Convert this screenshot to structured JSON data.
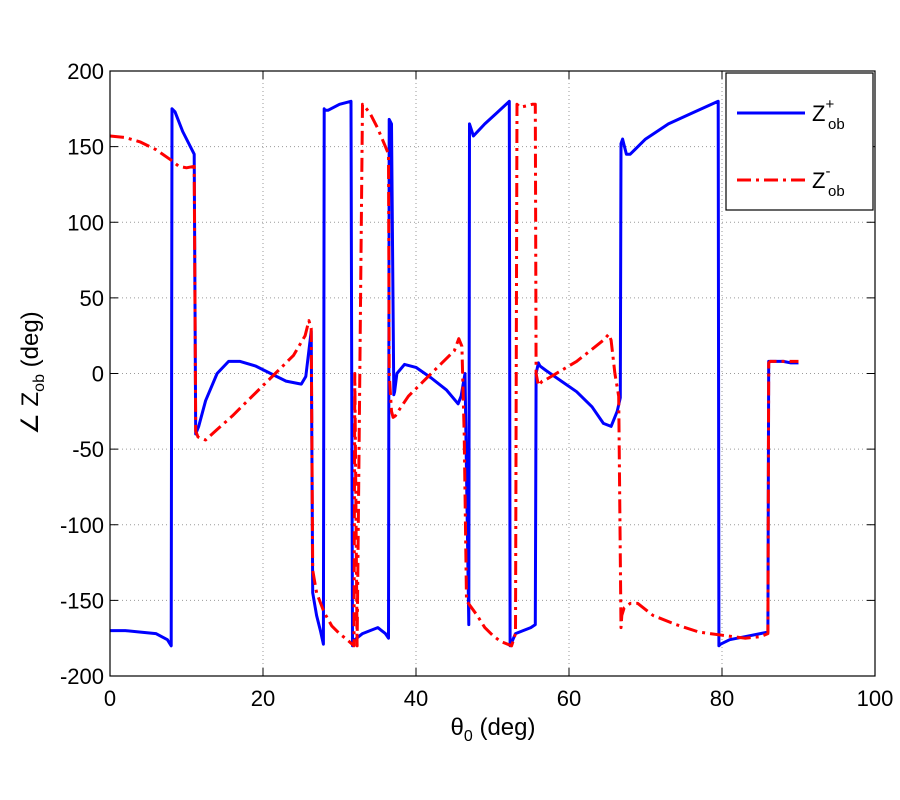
{
  "chart_data": {
    "type": "line",
    "title": "",
    "xlabel": {
      "symbol": "θ",
      "sub": "0",
      "unit": " (deg)"
    },
    "ylabel": {
      "prefix": "∠ Z",
      "sub": "ob",
      "unit": " (deg)"
    },
    "xlim": [
      0,
      100
    ],
    "ylim": [
      -200,
      200
    ],
    "xticks": [
      0,
      20,
      40,
      60,
      80,
      100
    ],
    "yticks": [
      -200,
      -150,
      -100,
      -50,
      0,
      50,
      100,
      150,
      200
    ],
    "grid": true,
    "legend_position": "top-right",
    "series": [
      {
        "name": "Z_ob^+",
        "legend": {
          "base": "Z",
          "sup": "+",
          "sub": "ob"
        },
        "color": "#0000ff",
        "style": "solid",
        "x": [
          0,
          2,
          4,
          6,
          7.5,
          8,
          8.1,
          8.5,
          9.5,
          11,
          11.2,
          11.6,
          12.5,
          14,
          15.5,
          17,
          19,
          21,
          23,
          25,
          25.6,
          26.3,
          26.5,
          27,
          27.5,
          27.9,
          28.0,
          28.1,
          28.5,
          30,
          31.5,
          31.6,
          31.7,
          32.0,
          33,
          34,
          35,
          36,
          36.4,
          36.5,
          36.8,
          37.1,
          37.2,
          37.5,
          38.5,
          40,
          42,
          44,
          45.5,
          45.9,
          46.4,
          46.9,
          47.0,
          47.5,
          49,
          50.5,
          52.2,
          52.3,
          52.5,
          53,
          54,
          55,
          55.6,
          55.7,
          56.0,
          56.2,
          57,
          59,
          61,
          63,
          64.5,
          65.5,
          66.3,
          66.7,
          66.8,
          67.0,
          67.5,
          68,
          70,
          73,
          76,
          79.5,
          79.6,
          79.8,
          81,
          83,
          85,
          86.0,
          86.1,
          86.3,
          87,
          88,
          89,
          90
        ],
        "y": [
          -170,
          -170,
          -171,
          -172,
          -176,
          -180,
          175,
          173,
          160,
          145,
          -40,
          -35,
          -18,
          0,
          8,
          8,
          5,
          0,
          -5,
          -7,
          -2,
          28,
          -145,
          -160,
          -170,
          -179,
          175,
          174,
          174,
          178,
          180,
          0,
          -180,
          -176,
          -172,
          -170,
          -168,
          -172,
          -175,
          168,
          165,
          -14,
          -12,
          0,
          6,
          4,
          -3,
          -11,
          -20,
          -15,
          0,
          -166,
          165,
          157,
          165,
          172,
          180,
          -180,
          -178,
          -172,
          -170,
          -168,
          -166,
          0,
          7,
          5,
          2,
          -5,
          -12,
          -22,
          -33,
          -35,
          -25,
          -16,
          152,
          155,
          145,
          145,
          155,
          165,
          172,
          180,
          -180,
          -179,
          -176,
          -174,
          -172,
          -171,
          8,
          8,
          8,
          8,
          7,
          7
        ]
      },
      {
        "name": "Z_ob^-",
        "legend": {
          "base": "Z",
          "sup": "-",
          "sub": "ob"
        },
        "color": "#ff0000",
        "style": "dashdot",
        "x": [
          0,
          2,
          4,
          6,
          8,
          9,
          10,
          11,
          11.2,
          11.5,
          12.5,
          14,
          16,
          18,
          20,
          22,
          24,
          25.5,
          26,
          26.3,
          26.5,
          27,
          28,
          29,
          30,
          31,
          31.9,
          32.0,
          32.3,
          33.0,
          33.2,
          34,
          35,
          36,
          36.4,
          36.5,
          36.8,
          37,
          37.3,
          37.8,
          39,
          41,
          43,
          45,
          45.6,
          46,
          46.3,
          46.6,
          47,
          48,
          49,
          50,
          51,
          52.5,
          53,
          53.2,
          53.6,
          54.5,
          55.2,
          55.6,
          55.7,
          56,
          56.5,
          57,
          59,
          61,
          63,
          64.5,
          65.2,
          65.5,
          66,
          66.5,
          66.8,
          66.9,
          67.2,
          68,
          69,
          71,
          74,
          77,
          80,
          83,
          85,
          86,
          86.1,
          86.3,
          87,
          88,
          89,
          90
        ],
        "y": [
          157,
          156,
          153,
          148,
          141,
          137,
          136,
          137,
          -38,
          -42,
          -44,
          -37,
          -28,
          -18,
          -8,
          2,
          12,
          25,
          35,
          30,
          -130,
          -145,
          -158,
          -167,
          -172,
          -176,
          -180,
          0,
          -180,
          178,
          177,
          172,
          162,
          150,
          145,
          0,
          -25,
          -29,
          -28,
          -24,
          -15,
          -5,
          5,
          15,
          23,
          18,
          -40,
          -150,
          -153,
          -160,
          -168,
          -173,
          -177,
          -180,
          -172,
          178,
          176,
          177,
          178,
          178,
          0,
          -8,
          -5,
          -4,
          2,
          8,
          16,
          22,
          26,
          22,
          0,
          -15,
          -168,
          -160,
          -155,
          -152,
          -152,
          -160,
          -166,
          -171,
          -173,
          -175,
          -174,
          -172,
          7,
          8,
          8,
          8,
          8,
          8
        ]
      }
    ]
  }
}
